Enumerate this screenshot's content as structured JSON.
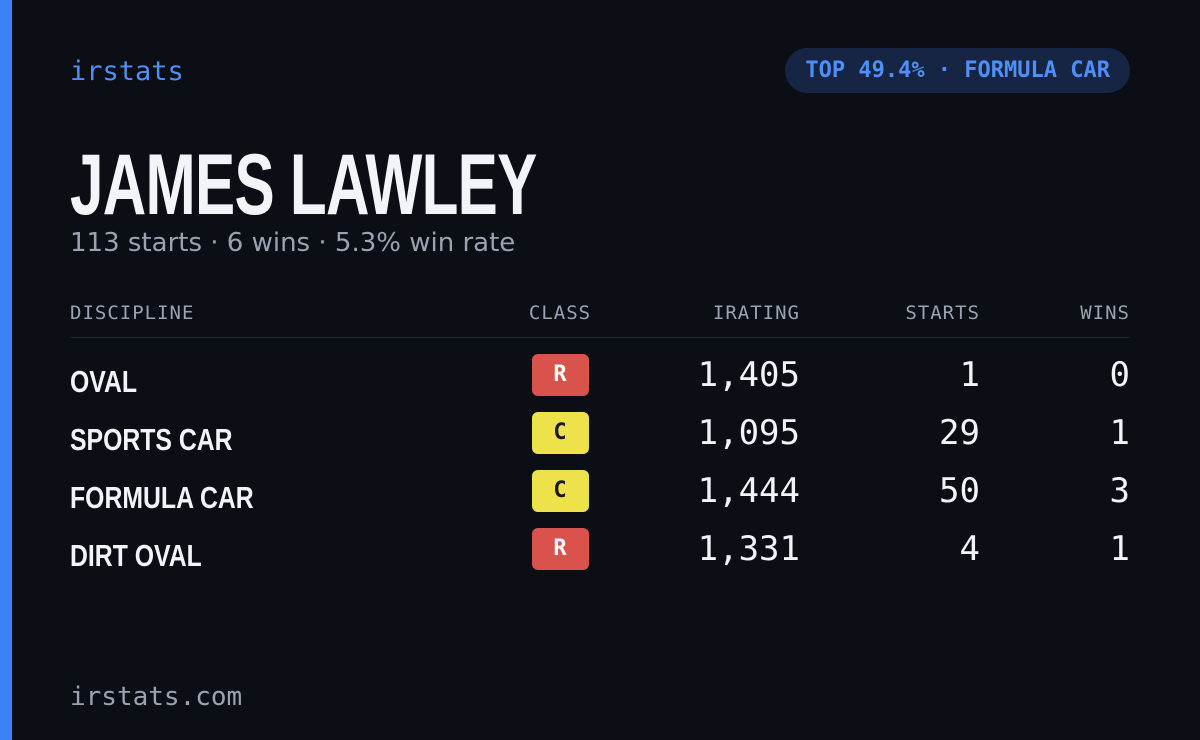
{
  "brand": "irstats",
  "badge": "TOP 49.4% · FORMULA CAR",
  "name": "JAMES LAWLEY",
  "summary": "113 starts · 6 wins · 5.3% win rate",
  "table": {
    "headers": [
      "DISCIPLINE",
      "CLASS",
      "IRATING",
      "STARTS",
      "WINS"
    ],
    "rows": [
      [
        "OVAL",
        "R",
        "1,405",
        1,
        0
      ],
      [
        "SPORTS CAR",
        "C",
        "1,095",
        29,
        1
      ],
      [
        "FORMULA CAR",
        "C",
        "1,444",
        50,
        3
      ],
      [
        "DIRT OVAL",
        "R",
        "1,331",
        4,
        1
      ]
    ],
    "class_colors": {
      "R": {
        "bg": "#d9534c",
        "fg": "#ffffff"
      },
      "C": {
        "bg": "#ede24a",
        "fg": "#1a1a1a"
      }
    }
  },
  "footer": "irstats.com"
}
